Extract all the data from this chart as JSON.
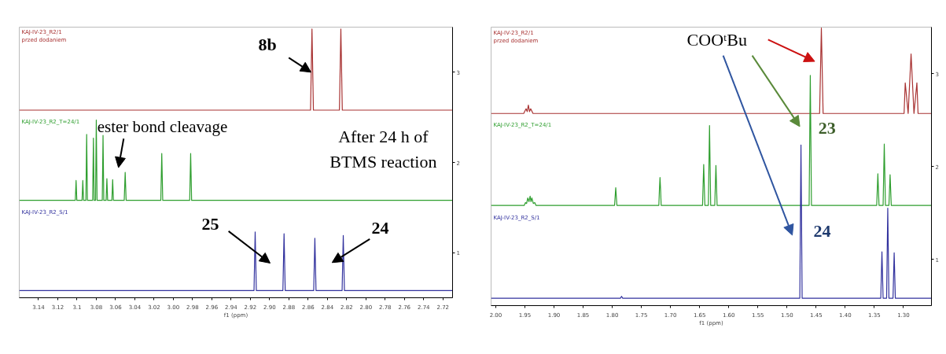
{
  "chart_data": [
    {
      "type": "line",
      "xlabel": "f1 (ppm)",
      "xlim": [
        3.16,
        2.71
      ],
      "ylim": [
        0.5,
        3.5
      ],
      "yticks": [
        1,
        2,
        3
      ],
      "xticks": [
        3.14,
        3.12,
        3.1,
        3.08,
        3.06,
        3.04,
        3.02,
        {
          "value": 3.0,
          "label": "3.00"
        },
        2.98,
        2.96,
        2.94,
        2.92,
        {
          "value": 2.9,
          "label": "2.90"
        },
        2.88,
        2.86,
        2.84,
        2.82,
        {
          "value": 2.8,
          "label": "2.80"
        },
        2.78,
        2.76,
        2.74,
        2.72
      ],
      "grid": false,
      "series": [
        {
          "name": "KAJ-IV-23_R2/1\nprzed dodaniem",
          "color": "#a83232",
          "x": [
            3.16,
            2.8575,
            2.856,
            2.8545,
            2.8275,
            2.826,
            2.8245,
            2.71
          ],
          "values": [
            2.58,
            2.58,
            3.48,
            2.58,
            2.58,
            3.48,
            2.58,
            2.58
          ]
        },
        {
          "name": "KAJ-IV-23_R2_T=24/1",
          "color": "#2e9e2e",
          "x": [
            3.16,
            3.1018,
            3.101,
            3.1002,
            3.0948,
            3.094,
            3.0932,
            3.0908,
            3.09,
            3.0892,
            3.0838,
            3.083,
            3.0822,
            3.0808,
            3.08,
            3.0792,
            3.0738,
            3.073,
            3.0722,
            3.0698,
            3.069,
            3.0682,
            3.0638,
            3.063,
            3.0622,
            3.051,
            3.05,
            3.049,
            3.013,
            3.012,
            3.011,
            2.983,
            2.982,
            2.981,
            2.71
          ],
          "values": [
            1.58,
            1.58,
            1.8,
            1.58,
            1.58,
            1.8,
            1.58,
            1.58,
            2.31,
            1.58,
            1.58,
            2.27,
            1.58,
            1.58,
            2.47,
            1.58,
            1.58,
            2.3,
            1.58,
            1.58,
            1.82,
            1.58,
            1.58,
            1.81,
            1.58,
            1.58,
            1.89,
            1.58,
            1.58,
            2.1,
            1.58,
            1.58,
            2.1,
            1.58,
            1.58
          ]
        },
        {
          "name": "KAJ-IV-23_R2_S/1",
          "color": "#32329e",
          "x": [
            3.16,
            2.9162,
            2.915,
            2.9138,
            2.8862,
            2.885,
            2.8838,
            2.8542,
            2.853,
            2.8518,
            2.8247,
            2.8235,
            2.8223,
            2.71
          ],
          "values": [
            0.58,
            0.58,
            1.23,
            0.58,
            0.58,
            1.21,
            0.58,
            0.58,
            1.16,
            0.58,
            0.58,
            1.19,
            0.58,
            0.58
          ]
        }
      ],
      "annotations": [
        {
          "text": "8b",
          "x": 2.857,
          "y": 3.0
        },
        "ester bond cleavage",
        "After 24 h of\nBTMS reaction",
        "25",
        "24"
      ]
    },
    {
      "type": "line",
      "xlabel": "f1 (ppm)",
      "xlim": [
        2.008,
        1.252
      ],
      "ylim": [
        0.5,
        3.5
      ],
      "yticks": [
        1,
        2,
        3
      ],
      "xticks": [
        {
          "value": 2.0,
          "label": "2.00"
        },
        1.95,
        {
          "value": 1.9,
          "label": "1.90"
        },
        1.85,
        {
          "value": 1.8,
          "label": "1.80"
        },
        1.75,
        {
          "value": 1.7,
          "label": "1.70"
        },
        1.65,
        {
          "value": 1.6,
          "label": "1.60"
        },
        1.55,
        {
          "value": 1.5,
          "label": "1.50"
        },
        1.45,
        {
          "value": 1.4,
          "label": "1.40"
        },
        1.35,
        {
          "value": 1.3,
          "label": "1.30"
        }
      ],
      "grid": false,
      "series": [
        {
          "name": "KAJ-IV-23_R2/1\nprzed dodaniem",
          "color": "#a83232",
          "x": [
            2.008,
            1.952,
            1.948,
            1.946,
            1.944,
            1.942,
            1.94,
            1.936,
            1.444,
            1.441,
            1.438,
            1.299,
            1.297,
            1.292,
            1.287,
            1.282,
            1.277,
            1.275,
            1.252
          ],
          "values": [
            2.57,
            2.57,
            2.62,
            2.59,
            2.66,
            2.59,
            2.62,
            2.57,
            2.57,
            3.49,
            2.57,
            2.57,
            2.9,
            2.57,
            3.21,
            2.57,
            2.9,
            2.57,
            2.57
          ]
        },
        {
          "name": "KAJ-IV-23_R2_T=24/1",
          "color": "#2e9e2e",
          "x": [
            2.008,
            1.951,
            1.949,
            1.947,
            1.945,
            1.943,
            1.941,
            1.9395,
            1.938,
            1.9355,
            1.933,
            1.931,
            1.796,
            1.794,
            1.792,
            1.72,
            1.719,
            1.718,
            1.717,
            1.716,
            1.645,
            1.643,
            1.641,
            1.635,
            1.633,
            1.631,
            1.624,
            1.622,
            1.62,
            1.462,
            1.46,
            1.458,
            1.346,
            1.344,
            1.342,
            1.335,
            1.333,
            1.331,
            1.325,
            1.323,
            1.321,
            1.252
          ],
          "values": [
            1.58,
            1.58,
            1.61,
            1.6,
            1.66,
            1.62,
            1.68,
            1.62,
            1.66,
            1.6,
            1.61,
            1.58,
            1.58,
            1.77,
            1.58,
            1.58,
            1.75,
            1.88,
            1.75,
            1.58,
            1.58,
            2.02,
            1.58,
            1.58,
            2.44,
            1.58,
            1.58,
            2.01,
            1.58,
            1.58,
            2.98,
            1.58,
            1.58,
            1.92,
            1.58,
            1.58,
            2.24,
            1.58,
            1.58,
            1.91,
            1.58,
            1.58
          ]
        },
        {
          "name": "KAJ-IV-23_R2_S/1",
          "color": "#32329e",
          "x": [
            2.008,
            1.786,
            1.784,
            1.782,
            1.478,
            1.476,
            1.474,
            1.339,
            1.337,
            1.335,
            1.329,
            1.327,
            1.325,
            1.318,
            1.316,
            1.314,
            1.252
          ],
          "values": [
            0.58,
            0.58,
            0.6,
            0.58,
            0.58,
            2.23,
            0.58,
            0.58,
            1.08,
            0.58,
            0.58,
            1.55,
            0.58,
            0.58,
            1.07,
            0.58,
            0.58
          ]
        }
      ],
      "annotations": [
        "COOᵗBu",
        "23",
        "24"
      ]
    }
  ]
}
